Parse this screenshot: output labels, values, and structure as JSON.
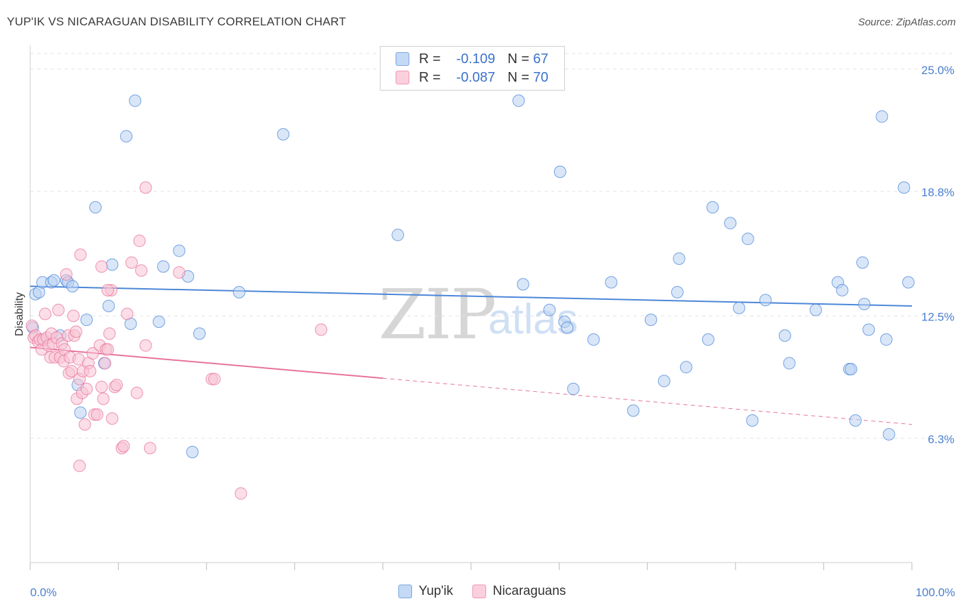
{
  "title": "YUP'IK VS NICARAGUAN DISABILITY CORRELATION CHART",
  "source": "Source: ZipAtlas.com",
  "watermark": {
    "zip": "ZIP",
    "atlas": "atlas"
  },
  "legend": {
    "rows": [
      {
        "r_label": "R =",
        "r_value": "-0.109",
        "n_label": "N =",
        "n_value": "67",
        "color": "#a9c8f2"
      },
      {
        "r_label": "R =",
        "r_value": "-0.087",
        "n_label": "N =",
        "n_value": "70",
        "color": "#f6b6ca"
      }
    ]
  },
  "bottom_legend": [
    {
      "label": "Yup'ik",
      "color": "#a9c8f2"
    },
    {
      "label": "Nicaraguans",
      "color": "#f6b6ca"
    }
  ],
  "chart_data": {
    "type": "scatter",
    "title": "YUP'IK VS NICARAGUAN DISABILITY CORRELATION CHART",
    "xlabel": "",
    "ylabel": "Disability",
    "x_tick_labels": [
      "0.0%",
      "100.0%"
    ],
    "y_tick_labels": [
      "25.0%",
      "18.8%",
      "12.5%",
      "6.3%"
    ],
    "y_tick_values": [
      25.0,
      18.8,
      12.5,
      6.3
    ],
    "xlim": [
      0,
      100
    ],
    "ylim": [
      0,
      26.0
    ],
    "grid": true,
    "series": [
      {
        "name": "Yup'ik",
        "color": "#4a86d8",
        "fill": "#b9d2f3",
        "trend": {
          "x0": 0,
          "y0": 14.0,
          "x1": 100,
          "y1": 13.0,
          "dashed_from": null
        },
        "points": [
          [
            0.3,
            11.9
          ],
          [
            0.6,
            13.6
          ],
          [
            1.0,
            13.7
          ],
          [
            1.4,
            14.2
          ],
          [
            2.4,
            14.2
          ],
          [
            2.7,
            14.3
          ],
          [
            3.4,
            11.5
          ],
          [
            4.1,
            14.3
          ],
          [
            4.3,
            14.2
          ],
          [
            4.8,
            14.0
          ],
          [
            5.4,
            9.0
          ],
          [
            5.7,
            7.6
          ],
          [
            6.4,
            12.3
          ],
          [
            7.4,
            18.0
          ],
          [
            8.4,
            10.1
          ],
          [
            8.9,
            13.0
          ],
          [
            9.3,
            15.1
          ],
          [
            10.9,
            21.6
          ],
          [
            11.4,
            12.1
          ],
          [
            11.9,
            23.4
          ],
          [
            14.6,
            12.2
          ],
          [
            15.1,
            15.0
          ],
          [
            16.9,
            15.8
          ],
          [
            17.9,
            14.5
          ],
          [
            18.4,
            5.6
          ],
          [
            19.2,
            11.6
          ],
          [
            23.7,
            13.7
          ],
          [
            28.7,
            21.7
          ],
          [
            41.7,
            16.6
          ],
          [
            55.4,
            23.4
          ],
          [
            55.9,
            14.1
          ],
          [
            58.9,
            12.8
          ],
          [
            60.1,
            19.8
          ],
          [
            60.6,
            12.2
          ],
          [
            60.9,
            11.9
          ],
          [
            61.6,
            8.8
          ],
          [
            63.9,
            11.3
          ],
          [
            65.9,
            14.2
          ],
          [
            68.4,
            7.7
          ],
          [
            70.4,
            12.3
          ],
          [
            71.9,
            9.2
          ],
          [
            73.4,
            13.7
          ],
          [
            73.6,
            15.4
          ],
          [
            74.4,
            9.9
          ],
          [
            76.9,
            11.3
          ],
          [
            77.4,
            18.0
          ],
          [
            79.4,
            17.2
          ],
          [
            80.4,
            12.9
          ],
          [
            81.4,
            16.4
          ],
          [
            81.9,
            7.2
          ],
          [
            83.4,
            13.3
          ],
          [
            85.6,
            11.5
          ],
          [
            86.1,
            10.1
          ],
          [
            89.1,
            12.8
          ],
          [
            91.6,
            14.2
          ],
          [
            92.1,
            13.8
          ],
          [
            92.9,
            9.8
          ],
          [
            93.1,
            9.8
          ],
          [
            93.6,
            7.2
          ],
          [
            94.4,
            15.2
          ],
          [
            94.6,
            13.1
          ],
          [
            95.1,
            11.8
          ],
          [
            96.6,
            22.6
          ],
          [
            97.1,
            11.3
          ],
          [
            97.4,
            6.5
          ],
          [
            99.1,
            19.0
          ],
          [
            99.6,
            14.2
          ]
        ]
      },
      {
        "name": "Nicaraguans",
        "color": "#e8729a",
        "fill": "#f7c3d3",
        "trend": {
          "x0": 0,
          "y0": 10.9,
          "x1": 100,
          "y1": 7.0,
          "dashed_from": 40
        },
        "points": [
          [
            0.2,
            12.0
          ],
          [
            0.4,
            11.4
          ],
          [
            0.6,
            11.5
          ],
          [
            0.9,
            11.2
          ],
          [
            1.1,
            11.3
          ],
          [
            1.3,
            10.8
          ],
          [
            1.5,
            11.3
          ],
          [
            1.7,
            12.6
          ],
          [
            1.9,
            11.4
          ],
          [
            2.1,
            11.0
          ],
          [
            2.3,
            10.4
          ],
          [
            2.4,
            11.6
          ],
          [
            2.6,
            11.1
          ],
          [
            2.8,
            10.4
          ],
          [
            3.0,
            11.4
          ],
          [
            3.2,
            12.8
          ],
          [
            3.4,
            10.4
          ],
          [
            3.6,
            11.1
          ],
          [
            3.8,
            10.2
          ],
          [
            3.9,
            10.8
          ],
          [
            4.1,
            14.6
          ],
          [
            4.3,
            11.5
          ],
          [
            4.4,
            9.6
          ],
          [
            4.5,
            10.4
          ],
          [
            4.7,
            9.7
          ],
          [
            4.9,
            12.5
          ],
          [
            5.0,
            11.5
          ],
          [
            5.2,
            11.7
          ],
          [
            5.3,
            8.3
          ],
          [
            5.5,
            10.3
          ],
          [
            5.6,
            9.3
          ],
          [
            5.7,
            15.6
          ],
          [
            5.9,
            8.6
          ],
          [
            6.0,
            9.7
          ],
          [
            6.2,
            7.0
          ],
          [
            6.4,
            8.8
          ],
          [
            6.6,
            10.1
          ],
          [
            6.8,
            9.7
          ],
          [
            7.1,
            10.6
          ],
          [
            7.3,
            7.5
          ],
          [
            7.6,
            7.5
          ],
          [
            7.9,
            11.0
          ],
          [
            8.1,
            8.9
          ],
          [
            8.3,
            8.3
          ],
          [
            8.5,
            10.1
          ],
          [
            8.6,
            10.8
          ],
          [
            8.8,
            10.8
          ],
          [
            9.0,
            11.6
          ],
          [
            9.2,
            13.8
          ],
          [
            9.3,
            7.3
          ],
          [
            9.6,
            8.9
          ],
          [
            9.8,
            9.0
          ],
          [
            10.4,
            5.8
          ],
          [
            10.6,
            5.9
          ],
          [
            11.0,
            12.6
          ],
          [
            11.5,
            15.2
          ],
          [
            12.1,
            8.6
          ],
          [
            12.6,
            14.8
          ],
          [
            13.1,
            11.0
          ],
          [
            13.1,
            19.0
          ],
          [
            13.6,
            5.8
          ],
          [
            12.4,
            16.3
          ],
          [
            5.6,
            4.9
          ],
          [
            8.1,
            15.0
          ],
          [
            8.8,
            13.8
          ],
          [
            16.9,
            14.7
          ],
          [
            20.6,
            9.3
          ],
          [
            20.9,
            9.3
          ],
          [
            23.9,
            3.5
          ],
          [
            33.0,
            11.8
          ]
        ]
      }
    ]
  }
}
